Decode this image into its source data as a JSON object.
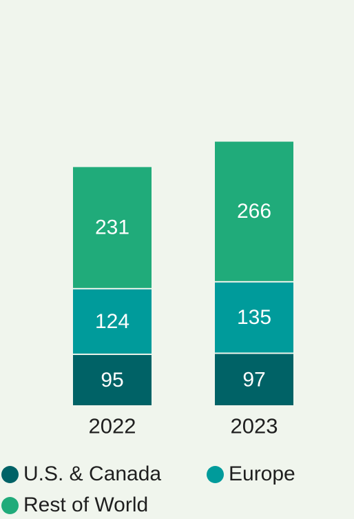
{
  "chart_data": {
    "type": "bar",
    "stacked": true,
    "categories": [
      "2022",
      "2023"
    ],
    "series": [
      {
        "name": "U.S. & Canada",
        "values": [
          95,
          97
        ],
        "color": "#006266"
      },
      {
        "name": "Europe",
        "values": [
          124,
          135
        ],
        "color": "#009b9b"
      },
      {
        "name": "Rest of World",
        "values": [
          231,
          266
        ],
        "color": "#20ab7a"
      }
    ],
    "title": "",
    "xlabel": "",
    "ylabel": "",
    "ylim": [
      0,
      500
    ],
    "grid": false,
    "legend": "bottom"
  },
  "colors": {
    "background": "#f0f5ed",
    "label_text": "#ffffff",
    "axis_text": "#1f1f1f"
  }
}
